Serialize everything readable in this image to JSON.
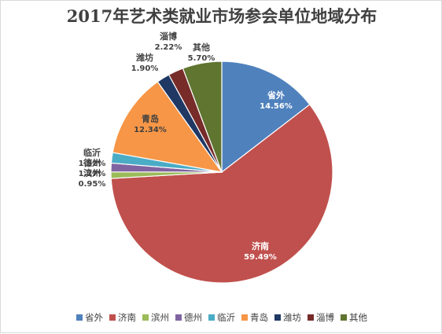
{
  "chart_data": {
    "type": "pie",
    "title": "2017年艺术类就业市场参会单位地域分布",
    "slices": [
      {
        "label": "省外",
        "value": 14.56,
        "display": "14.56%",
        "color": "#4f81bd"
      },
      {
        "label": "济南",
        "value": 59.49,
        "display": "59.49%",
        "color": "#c0504d"
      },
      {
        "label": "滨州",
        "value": 0.95,
        "display": "0.95%",
        "color": "#9bbb59"
      },
      {
        "label": "德州",
        "value": 1.27,
        "display": "1.27%",
        "color": "#8064a2"
      },
      {
        "label": "临沂",
        "value": 1.52,
        "display": "1.52%",
        "color": "#4bacc6"
      },
      {
        "label": "青岛",
        "value": 12.34,
        "display": "12.34%",
        "color": "#f79646"
      },
      {
        "label": "潍坊",
        "value": 1.9,
        "display": "1.90%",
        "color": "#1f3864"
      },
      {
        "label": "淄博",
        "value": 2.22,
        "display": "2.22%",
        "color": "#772c2a"
      },
      {
        "label": "其他",
        "value": 5.7,
        "display": "5.70%",
        "color": "#5f7530"
      }
    ],
    "legend_position": "bottom"
  }
}
